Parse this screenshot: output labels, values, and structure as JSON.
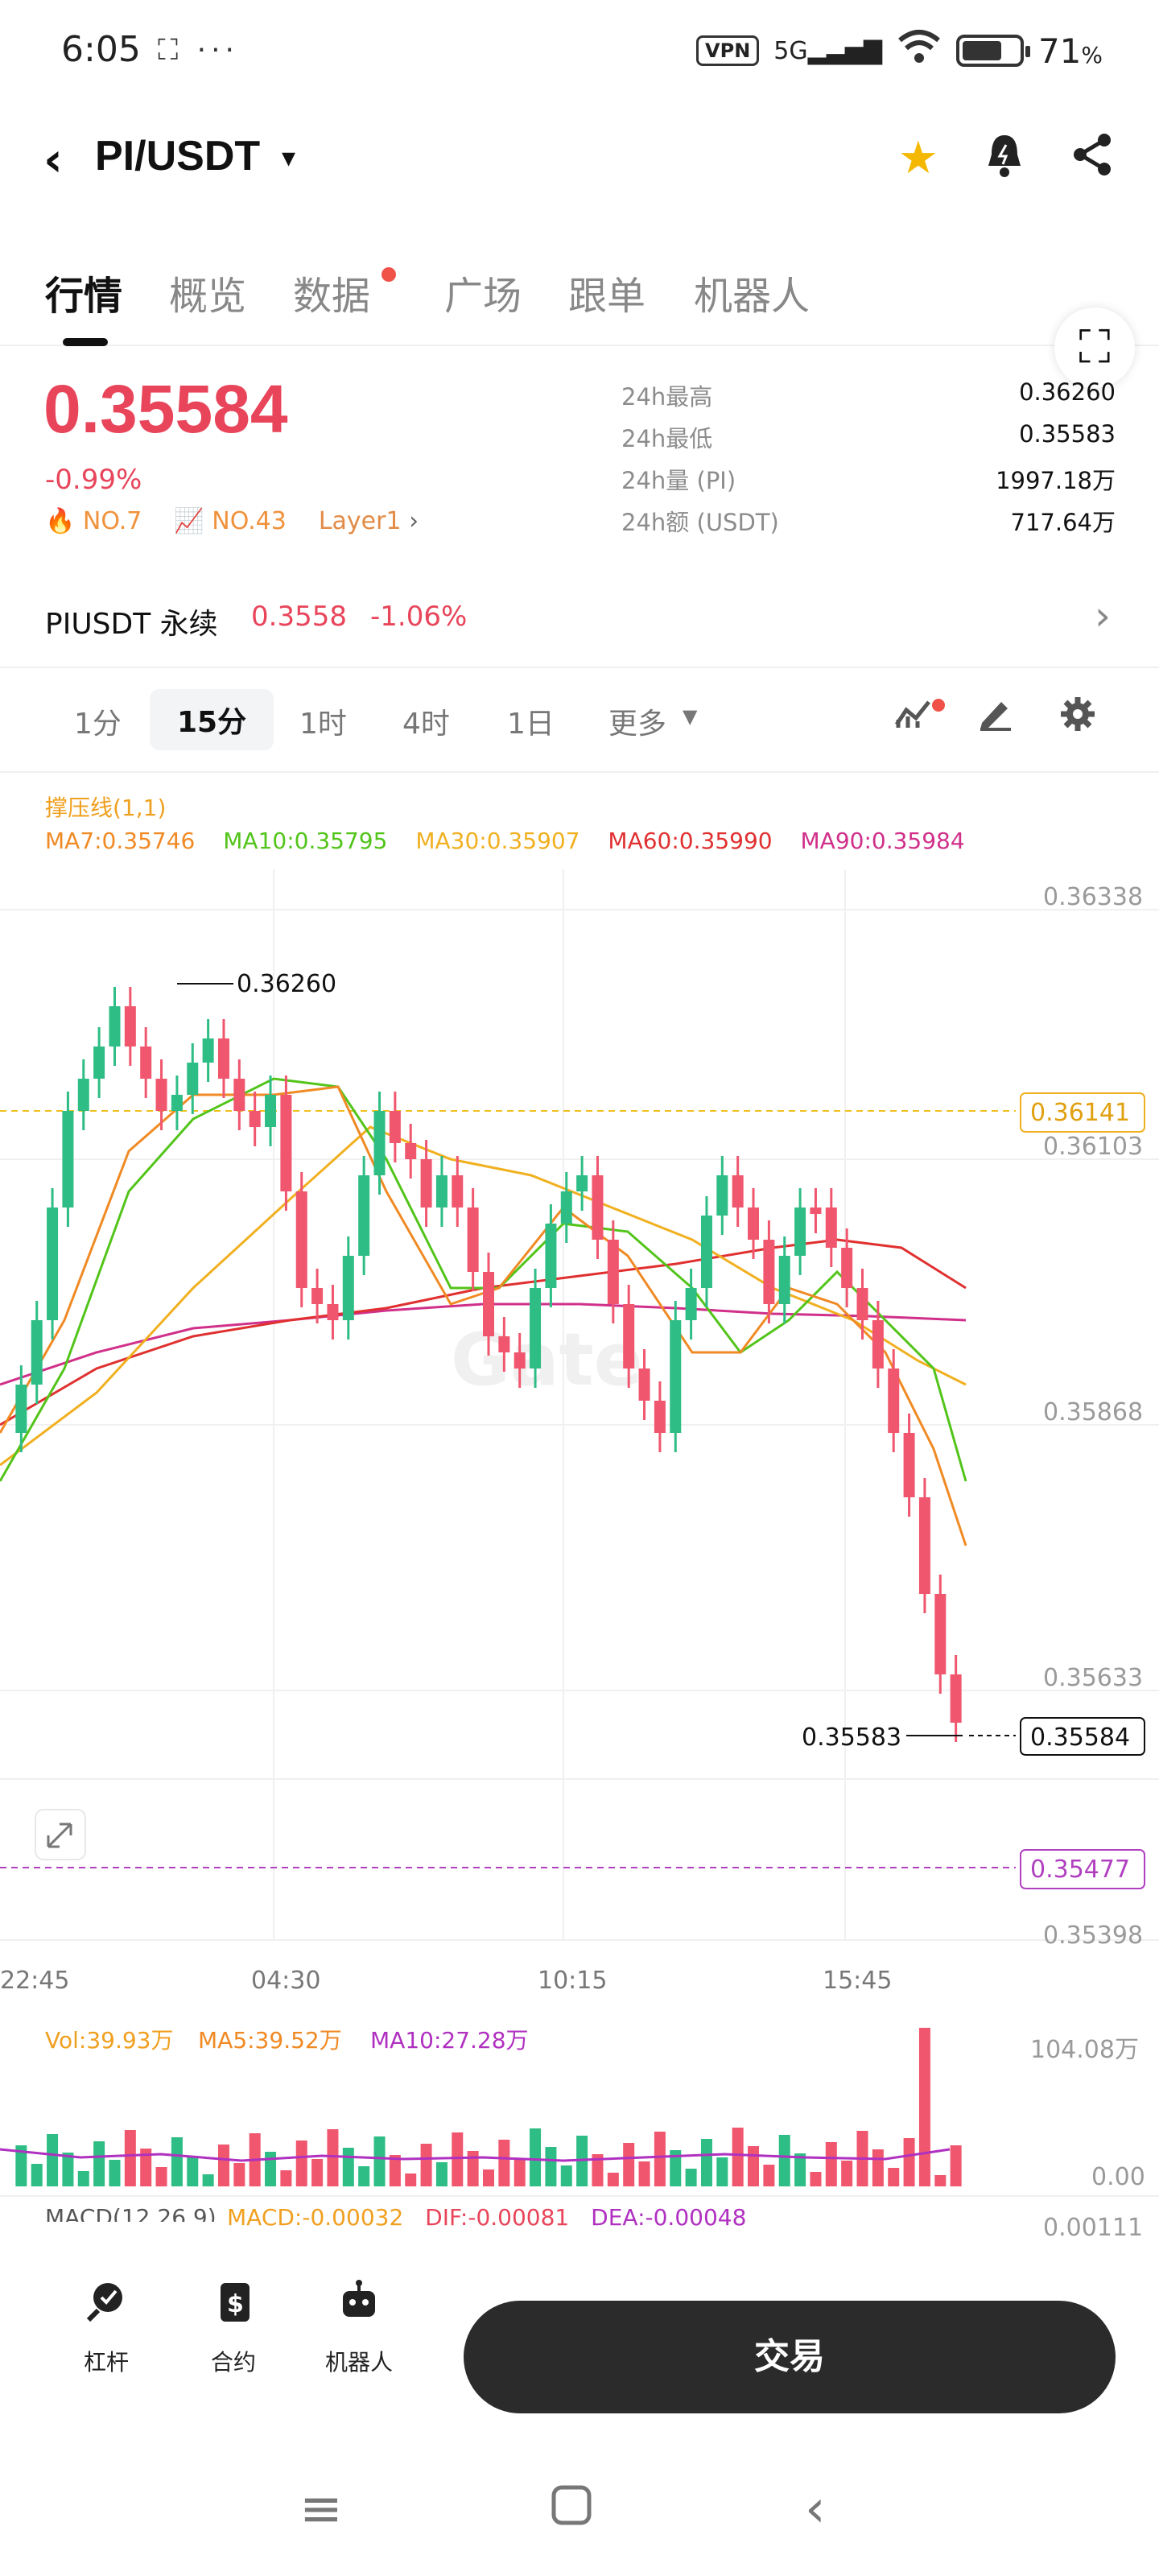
{
  "status_bar": {
    "time": "6:05",
    "left_icons": "⛶ ···",
    "vpn": "VPN",
    "network": "5G",
    "battery_pct": "71",
    "battery_unit": "%"
  },
  "header": {
    "back_icon": "‹",
    "pair": "PI/USDT",
    "caret": "▾"
  },
  "tabs": [
    {
      "label": "行情"
    },
    {
      "label": "概览"
    },
    {
      "label": "数据"
    },
    {
      "label": "广场"
    },
    {
      "label": "跟单"
    },
    {
      "label": "机器人"
    }
  ],
  "price": {
    "last": "0.35584",
    "change_pct": "-0.99%",
    "rank1": "NO.7",
    "rank2": "NO.43",
    "tag": "Layer1",
    "tag_arrow": "›",
    "stats": [
      {
        "label": "24h最高",
        "value": "0.36260"
      },
      {
        "label": "24h最低",
        "value": "0.35583"
      },
      {
        "label": "24h量 (PI)",
        "value": "1997.18万"
      },
      {
        "label": "24h额 (USDT)",
        "value": "717.64万"
      }
    ]
  },
  "perpetual": {
    "name": "PIUSDT 永续",
    "price": "0.3558",
    "change": "-1.06%",
    "arrow": "›"
  },
  "intervals": {
    "items": [
      "1分",
      "15分",
      "1时",
      "4时",
      "1日",
      "更多"
    ],
    "selected": "15分"
  },
  "indicators": {
    "support_label": "撑压线(1,1)",
    "ma": [
      {
        "text": "MA7:0.35746",
        "color": "#f08a24"
      },
      {
        "text": "MA10:0.35795",
        "color": "#52c41a"
      },
      {
        "text": "MA30:0.35907",
        "color": "#f0b020"
      },
      {
        "text": "MA60:0.35990",
        "color": "#e03030"
      },
      {
        "text": "MA90:0.35984",
        "color": "#d0308a"
      }
    ]
  },
  "chart_data": {
    "type": "candlestick",
    "y_ticks": [
      "0.36338",
      "0.36103",
      "0.35868",
      "0.35633",
      "0.35398"
    ],
    "x_ticks": [
      "22:45",
      "04:30",
      "10:15",
      "15:45"
    ],
    "high_label": "0.36260",
    "low_label": "0.35583",
    "last_price_tag": "0.35584",
    "resistance_tag": "0.36141",
    "support_tag": "0.35477",
    "watermark": "Gate",
    "ylim": [
      0.35398,
      0.36338
    ],
    "volume": {
      "labels": [
        {
          "text": "Vol:39.93万",
          "color": "#f0a020"
        },
        {
          "text": "MA5:39.52万",
          "color": "#f08a24"
        },
        {
          "text": "MA10:27.28万",
          "color": "#b030c0"
        }
      ],
      "max_label": "104.08万",
      "zero_label": "0.00"
    },
    "macd": {
      "label": "MACD(12,26,9)",
      "macd": "MACD:-0.00032",
      "dif": "DIF:-0.00081",
      "dea": "DEA:-0.00048",
      "top_tick": "0.00111"
    }
  },
  "bottom_nav": {
    "items": [
      {
        "label": "杠杆"
      },
      {
        "label": "合约"
      },
      {
        "label": "机器人"
      }
    ],
    "trade": "交易"
  }
}
